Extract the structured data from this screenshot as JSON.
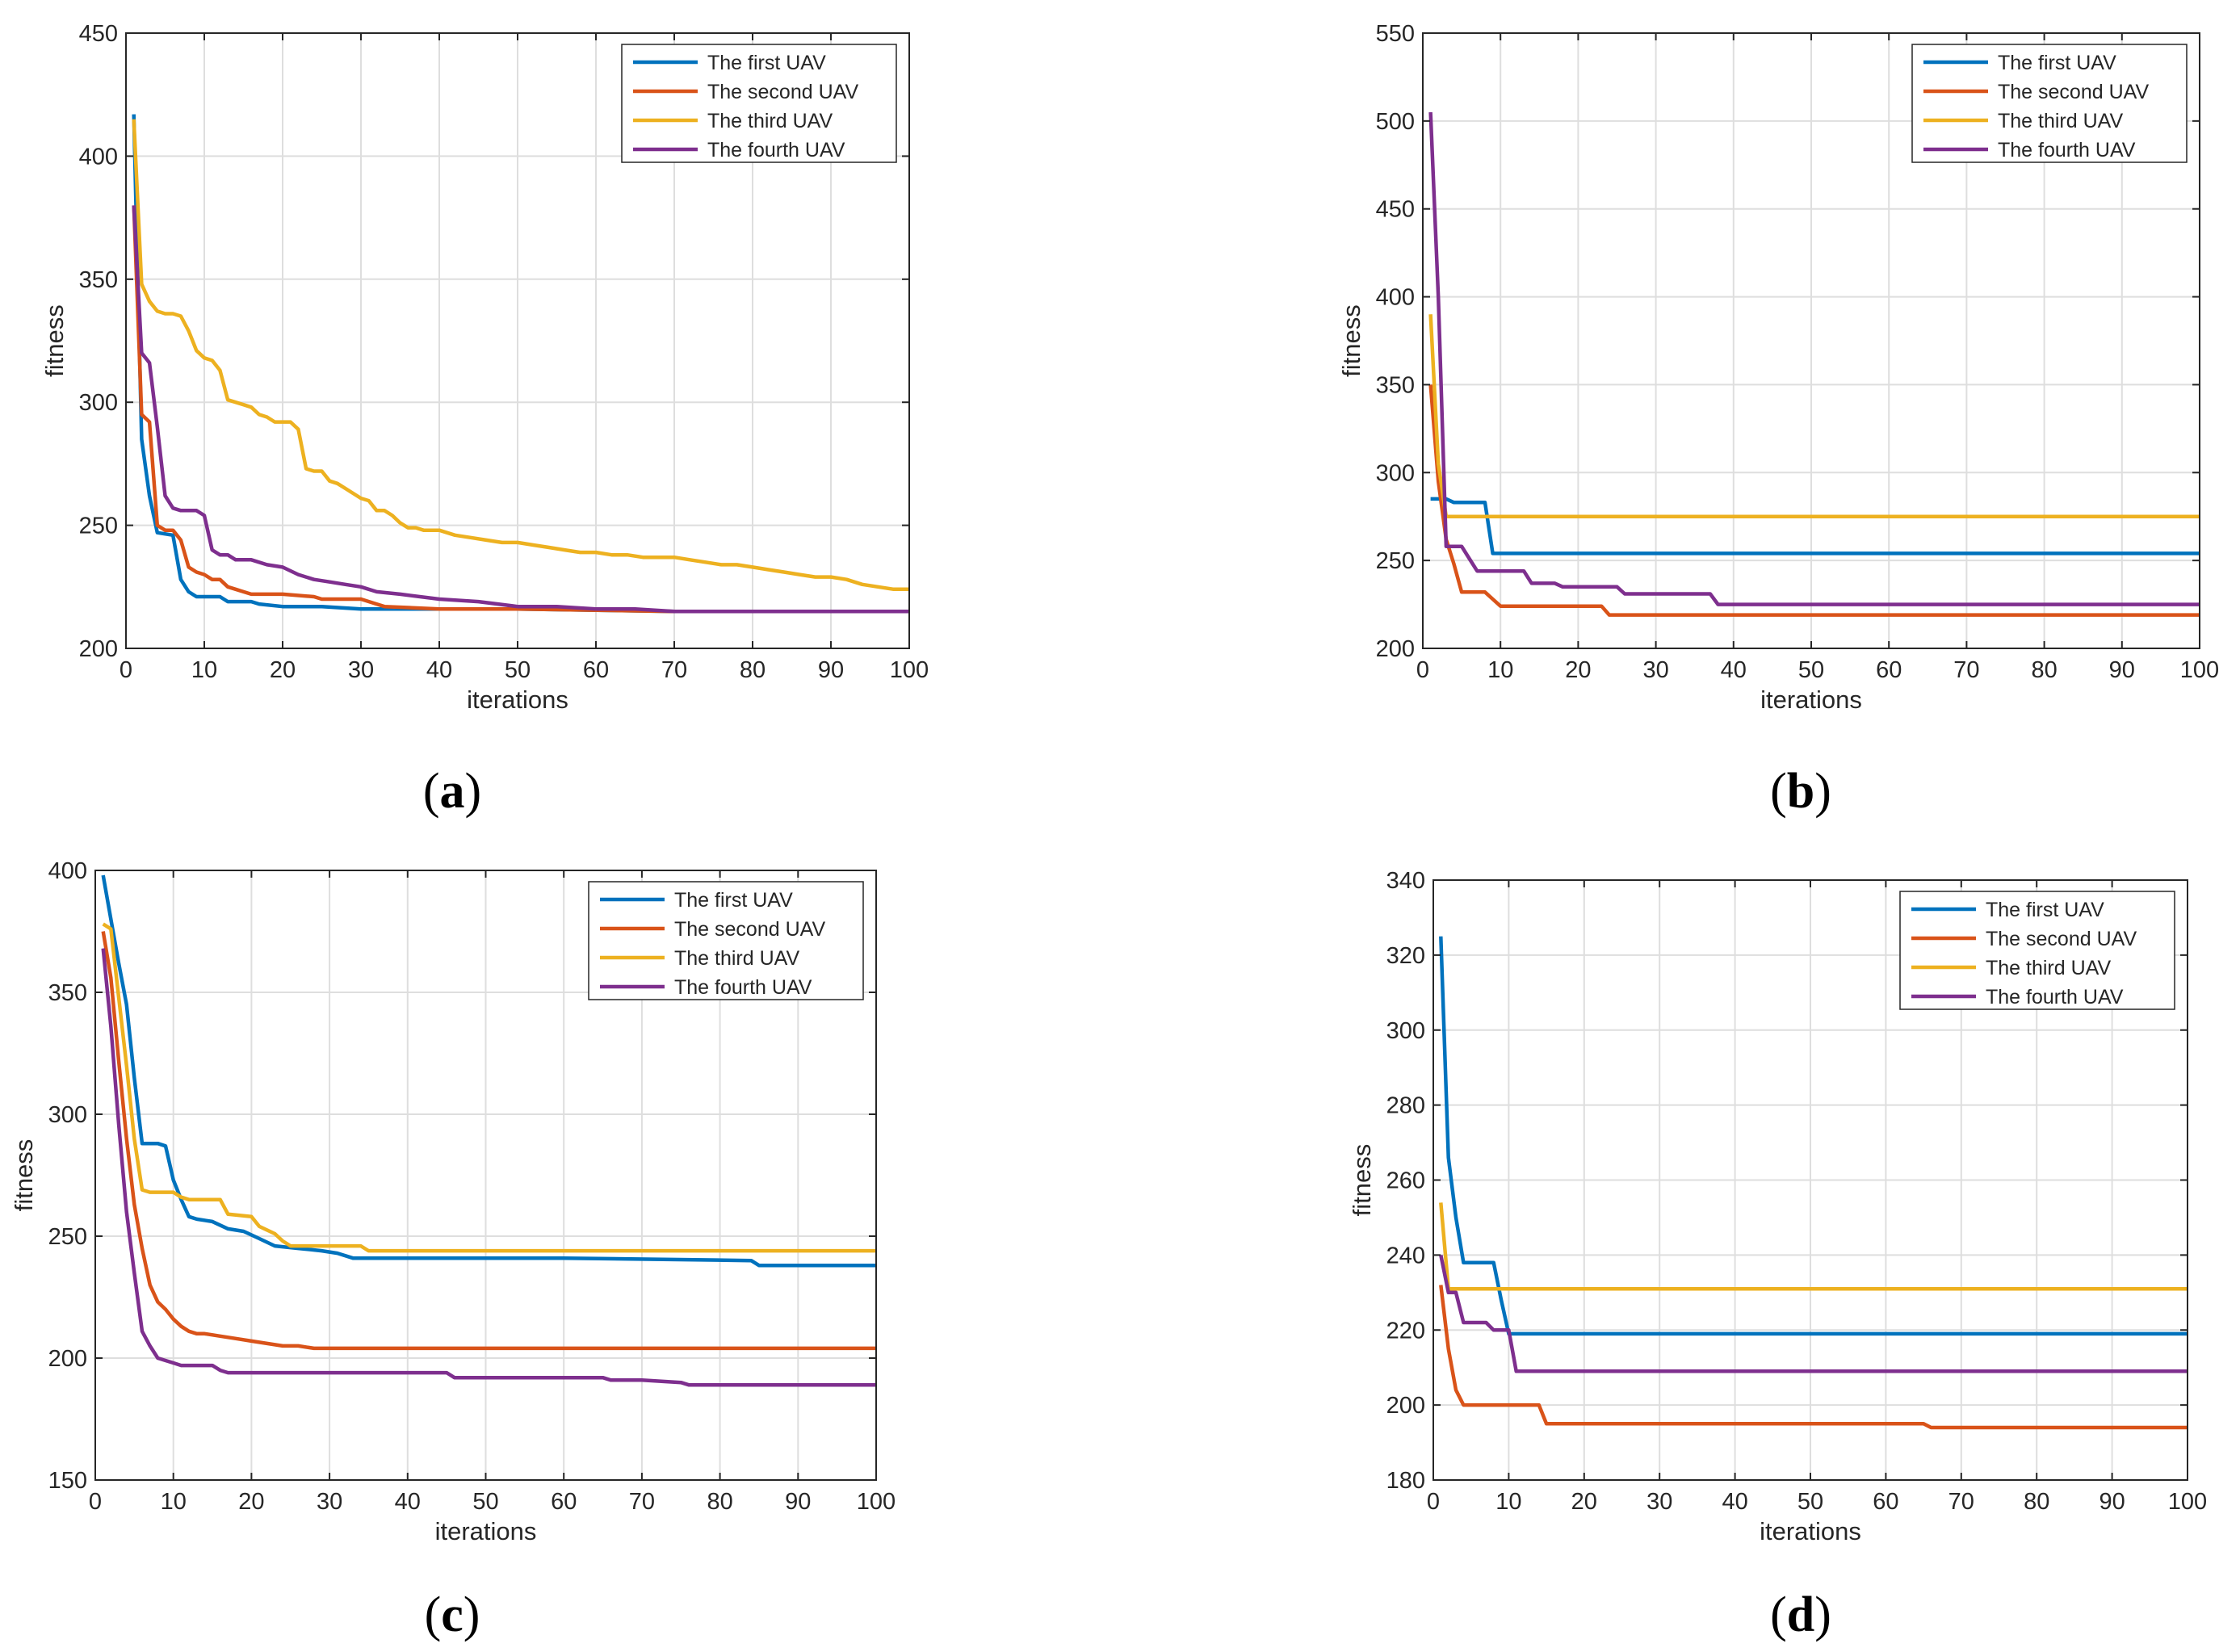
{
  "colors": {
    "first": "#0072BD",
    "second": "#D95319",
    "third": "#EDB120",
    "fourth": "#7E2F8E",
    "grid": "#dedede",
    "axis": "#262626"
  },
  "chart_data": [
    {
      "type": "line",
      "panel": "a",
      "caption": {
        "open": "(",
        "letter": "a",
        "close": ")"
      },
      "xlabel": "iterations",
      "ylabel": "fitness",
      "xlim": [
        0,
        100
      ],
      "ylim": [
        200,
        450
      ],
      "xticks": [
        0,
        10,
        20,
        30,
        40,
        50,
        60,
        70,
        80,
        90,
        100
      ],
      "yticks": [
        200,
        250,
        300,
        350,
        400,
        450
      ],
      "grid": true,
      "legend": "top-right",
      "series": [
        {
          "name": "The first UAV",
          "color_key": "first",
          "x": [
            1,
            2,
            3,
            4,
            6,
            7,
            8,
            9,
            12,
            13,
            16,
            17,
            20,
            25,
            30,
            40,
            50,
            70,
            100
          ],
          "y": [
            417,
            285,
            262,
            247,
            246,
            228,
            223,
            221,
            221,
            219,
            219,
            218,
            217,
            217,
            216,
            216,
            216,
            215,
            215
          ]
        },
        {
          "name": "The second UAV",
          "color_key": "second",
          "x": [
            1,
            2,
            3,
            4,
            5,
            6,
            7,
            8,
            9,
            10,
            11,
            12,
            13,
            14,
            15,
            16,
            17,
            20,
            24,
            25,
            30,
            32,
            33,
            40,
            50,
            70,
            100
          ],
          "y": [
            380,
            295,
            292,
            250,
            248,
            248,
            244,
            233,
            231,
            230,
            228,
            228,
            225,
            224,
            223,
            222,
            222,
            222,
            221,
            220,
            220,
            218,
            217,
            216,
            216,
            215,
            215
          ]
        },
        {
          "name": "The third UAV",
          "color_key": "third",
          "x": [
            1,
            2,
            3,
            4,
            5,
            6,
            7,
            8,
            9,
            10,
            11,
            12,
            13,
            14,
            15,
            16,
            17,
            18,
            19,
            20,
            21,
            22,
            23,
            24,
            25,
            26,
            27,
            28,
            29,
            30,
            31,
            32,
            33,
            34,
            35,
            36,
            37,
            38,
            40,
            42,
            44,
            46,
            48,
            50,
            52,
            54,
            56,
            58,
            60,
            62,
            64,
            66,
            68,
            70,
            72,
            74,
            76,
            78,
            80,
            82,
            84,
            86,
            88,
            90,
            92,
            94,
            96,
            98,
            100
          ],
          "y": [
            415,
            348,
            341,
            337,
            336,
            336,
            335,
            329,
            321,
            318,
            317,
            313,
            301,
            300,
            299,
            298,
            295,
            294,
            292,
            292,
            292,
            289,
            273,
            272,
            272,
            268,
            267,
            265,
            263,
            261,
            260,
            256,
            256,
            254,
            251,
            249,
            249,
            248,
            248,
            246,
            245,
            244,
            243,
            243,
            242,
            241,
            240,
            239,
            239,
            238,
            238,
            237,
            237,
            237,
            236,
            235,
            234,
            234,
            233,
            232,
            231,
            230,
            229,
            229,
            228,
            226,
            225,
            224,
            224
          ]
        },
        {
          "name": "The fourth UAV",
          "color_key": "fourth",
          "x": [
            1,
            2,
            3,
            4,
            5,
            6,
            7,
            8,
            9,
            10,
            11,
            12,
            13,
            14,
            16,
            18,
            20,
            22,
            24,
            26,
            28,
            30,
            32,
            35,
            40,
            45,
            50,
            55,
            60,
            65,
            70,
            80,
            100
          ],
          "y": [
            380,
            320,
            316,
            290,
            262,
            257,
            256,
            256,
            256,
            254,
            240,
            238,
            238,
            236,
            236,
            234,
            233,
            230,
            228,
            227,
            226,
            225,
            223,
            222,
            220,
            219,
            217,
            217,
            216,
            216,
            215,
            215,
            215
          ]
        }
      ]
    },
    {
      "type": "line",
      "panel": "b",
      "caption": {
        "open": "(",
        "letter": "b",
        "close": ")"
      },
      "xlabel": "iterations",
      "ylabel": "fitness",
      "xlim": [
        0,
        100
      ],
      "ylim": [
        200,
        550
      ],
      "xticks": [
        0,
        10,
        20,
        30,
        40,
        50,
        60,
        70,
        80,
        90,
        100
      ],
      "yticks": [
        200,
        250,
        300,
        350,
        400,
        450,
        500,
        550
      ],
      "grid": true,
      "legend": "top-right",
      "series": [
        {
          "name": "The first UAV",
          "color_key": "first",
          "x": [
            1,
            2,
            3,
            4,
            8,
            9,
            100
          ],
          "y": [
            285,
            285,
            285,
            283,
            283,
            254,
            254
          ]
        },
        {
          "name": "The second UAV",
          "color_key": "second",
          "x": [
            1,
            2,
            3,
            4,
            5,
            8,
            9,
            10,
            23,
            24,
            100
          ],
          "y": [
            350,
            295,
            262,
            248,
            232,
            232,
            228,
            224,
            224,
            219,
            219
          ]
        },
        {
          "name": "The third UAV",
          "color_key": "third",
          "x": [
            1,
            2,
            3,
            100
          ],
          "y": [
            390,
            305,
            275,
            275
          ]
        },
        {
          "name": "The fourth UAV",
          "color_key": "fourth",
          "x": [
            1,
            2,
            3,
            5,
            6,
            7,
            13,
            14,
            17,
            18,
            25,
            26,
            37,
            38,
            100
          ],
          "y": [
            505,
            400,
            258,
            258,
            251,
            244,
            244,
            237,
            237,
            235,
            235,
            231,
            231,
            225,
            225
          ]
        }
      ]
    },
    {
      "type": "line",
      "panel": "c",
      "caption": {
        "open": "(",
        "letter": "c",
        "close": ")"
      },
      "xlabel": "iterations",
      "ylabel": "fitness",
      "xlim": [
        0,
        100
      ],
      "ylim": [
        150,
        400
      ],
      "xticks": [
        0,
        10,
        20,
        30,
        40,
        50,
        60,
        70,
        80,
        90,
        100
      ],
      "yticks": [
        150,
        200,
        250,
        300,
        350,
        400
      ],
      "grid": true,
      "legend": "top-right",
      "series": [
        {
          "name": "The first UAV",
          "color_key": "first",
          "x": [
            1,
            2,
            3,
            4,
            5,
            6,
            8,
            9,
            10,
            11,
            12,
            13,
            15,
            17,
            19,
            21,
            23,
            26,
            29,
            31,
            33,
            40,
            60,
            84,
            85,
            100
          ],
          "y": [
            398,
            380,
            362,
            345,
            315,
            288,
            288,
            287,
            273,
            265,
            258,
            257,
            256,
            253,
            252,
            249,
            246,
            245,
            244,
            243,
            241,
            241,
            241,
            240,
            238,
            238
          ]
        },
        {
          "name": "The second UAV",
          "color_key": "second",
          "x": [
            1,
            2,
            3,
            4,
            5,
            6,
            7,
            8,
            9,
            10,
            11,
            12,
            13,
            14,
            16,
            18,
            20,
            22,
            24,
            26,
            28,
            30,
            40,
            60,
            80,
            100
          ],
          "y": [
            375,
            356,
            322,
            290,
            263,
            245,
            230,
            223,
            220,
            216,
            213,
            211,
            210,
            210,
            209,
            208,
            207,
            206,
            205,
            205,
            204,
            204,
            204,
            204,
            204,
            204
          ]
        },
        {
          "name": "The third UAV",
          "color_key": "third",
          "x": [
            1,
            2,
            3,
            4,
            5,
            6,
            7,
            10,
            11,
            12,
            16,
            17,
            20,
            21,
            23,
            24,
            25,
            34,
            35,
            100
          ],
          "y": [
            378,
            376,
            348,
            320,
            290,
            269,
            268,
            268,
            266,
            265,
            265,
            259,
            258,
            254,
            251,
            248,
            246,
            246,
            244,
            244
          ]
        },
        {
          "name": "The fourth UAV",
          "color_key": "fourth",
          "x": [
            1,
            2,
            3,
            4,
            5,
            6,
            7,
            8,
            9,
            10,
            11,
            15,
            16,
            17,
            45,
            46,
            65,
            66,
            70,
            75,
            76,
            100
          ],
          "y": [
            368,
            336,
            296,
            260,
            235,
            211,
            205,
            200,
            199,
            198,
            197,
            197,
            195,
            194,
            194,
            192,
            192,
            191,
            191,
            190,
            189,
            189
          ]
        }
      ]
    },
    {
      "type": "line",
      "panel": "d",
      "caption": {
        "open": "(",
        "letter": "d",
        "close": ")"
      },
      "xlabel": "iterations",
      "ylabel": "fitness",
      "xlim": [
        0,
        100
      ],
      "ylim": [
        180,
        340
      ],
      "xticks": [
        0,
        10,
        20,
        30,
        40,
        50,
        60,
        70,
        80,
        90,
        100
      ],
      "yticks": [
        180,
        200,
        220,
        240,
        260,
        280,
        300,
        320,
        340
      ],
      "grid": true,
      "legend": "top-right",
      "series": [
        {
          "name": "The first UAV",
          "color_key": "first",
          "x": [
            1,
            2,
            3,
            4,
            8,
            9,
            10,
            100
          ],
          "y": [
            325,
            266,
            250,
            238,
            238,
            228,
            219,
            219
          ]
        },
        {
          "name": "The second UAV",
          "color_key": "second",
          "x": [
            1,
            2,
            3,
            4,
            14,
            15,
            65,
            66,
            100
          ],
          "y": [
            232,
            215,
            204,
            200,
            200,
            195,
            195,
            194,
            194
          ]
        },
        {
          "name": "The third UAV",
          "color_key": "third",
          "x": [
            1,
            2,
            100
          ],
          "y": [
            254,
            231,
            231
          ]
        },
        {
          "name": "The fourth UAV",
          "color_key": "fourth",
          "x": [
            1,
            2,
            3,
            4,
            7,
            8,
            10,
            11,
            100
          ],
          "y": [
            240,
            230,
            230,
            222,
            222,
            220,
            220,
            209,
            209
          ]
        }
      ]
    }
  ]
}
